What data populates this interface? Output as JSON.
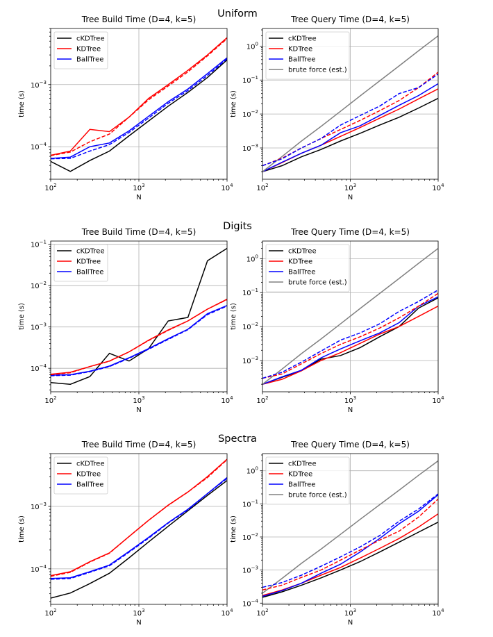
{
  "chart_data": [
    {
      "type": "line",
      "dataset": "Uniform",
      "title": "Tree Build Time (D=4, k=5)",
      "xlabel": "N",
      "ylabel": "time (s)",
      "xscale": "log",
      "yscale": "log",
      "xlim": [
        100,
        10000
      ],
      "ylim": [
        3e-05,
        0.008
      ],
      "grid": true,
      "legend_position": "upper-left",
      "x": [
        100,
        167,
        278,
        464,
        774,
        1292,
        2154,
        3594,
        5995,
        10000
      ],
      "series": [
        {
          "name": "cKDTree",
          "color": "#000000",
          "dashed": false,
          "values": [
            5.8e-05,
            4e-05,
            6e-05,
            8.5e-05,
            0.00015,
            0.00026,
            0.00045,
            0.00075,
            0.0013,
            0.0025
          ]
        },
        {
          "name": "KDTree",
          "color": "#ff0000",
          "dashed": false,
          "values": [
            7.3e-05,
            8.5e-05,
            0.00019,
            0.000175,
            0.0003,
            0.0006,
            0.001,
            0.0017,
            0.003,
            0.0057
          ]
        },
        {
          "name": "BallTree",
          "color": "#0000ff",
          "dashed": false,
          "values": [
            6.5e-05,
            6.8e-05,
            0.0001,
            0.000115,
            0.00018,
            0.00031,
            0.00053,
            0.00085,
            0.0015,
            0.0027
          ]
        },
        {
          "name": "",
          "color": "#ff0000",
          "dashed": true,
          "values": [
            7.2e-05,
            8.2e-05,
            0.00012,
            0.00016,
            0.0003,
            0.00057,
            0.00095,
            0.0016,
            0.0029,
            0.0055
          ]
        },
        {
          "name": "",
          "color": "#0000ff",
          "dashed": true,
          "values": [
            6.4e-05,
            6.5e-05,
            8.5e-05,
            0.000108,
            0.00017,
            0.00029,
            0.0005,
            0.0008,
            0.0014,
            0.0026
          ]
        }
      ]
    },
    {
      "type": "line",
      "dataset": "Uniform",
      "title": "Tree Query Time (D=4, k=5)",
      "xlabel": "N",
      "ylabel": "time (s)",
      "xscale": "log",
      "yscale": "log",
      "xlim": [
        100,
        10000
      ],
      "ylim": [
        0.00012,
        3.3
      ],
      "grid": true,
      "legend_position": "upper-left",
      "x": [
        100,
        167,
        278,
        464,
        774,
        1292,
        2154,
        3594,
        5995,
        10000
      ],
      "series": [
        {
          "name": "cKDTree",
          "color": "#000000",
          "dashed": false,
          "values": [
            0.0002,
            0.0003,
            0.00055,
            0.0009,
            0.0016,
            0.0027,
            0.0047,
            0.008,
            0.015,
            0.029
          ]
        },
        {
          "name": "KDTree",
          "color": "#ff0000",
          "dashed": false,
          "values": [
            0.0002,
            0.00037,
            0.0007,
            0.0012,
            0.0022,
            0.004,
            0.0075,
            0.014,
            0.028,
            0.055
          ]
        },
        {
          "name": "BallTree",
          "color": "#0000ff",
          "dashed": false,
          "values": [
            0.0002,
            0.00038,
            0.0007,
            0.0012,
            0.0028,
            0.0045,
            0.009,
            0.018,
            0.035,
            0.078
          ]
        },
        {
          "name": "brute force (est.)",
          "color": "#808080",
          "dashed": false,
          "values": [
            0.0002,
            0.00056,
            0.0016,
            0.0043,
            0.012,
            0.034,
            0.094,
            0.26,
            0.73,
            2.0
          ]
        },
        {
          "name": "",
          "color": "#ff0000",
          "dashed": true,
          "values": [
            0.0003,
            0.0005,
            0.001,
            0.0019,
            0.0035,
            0.0065,
            0.0125,
            0.025,
            0.06,
            0.17
          ]
        },
        {
          "name": "",
          "color": "#0000ff",
          "dashed": true,
          "values": [
            0.0003,
            0.00048,
            0.001,
            0.0019,
            0.0047,
            0.009,
            0.017,
            0.04,
            0.06,
            0.15
          ]
        }
      ]
    },
    {
      "type": "line",
      "dataset": "Digits",
      "title": "Tree Build Time (D=4, k=5)",
      "xlabel": "N",
      "ylabel": "time (s)",
      "xscale": "log",
      "yscale": "log",
      "xlim": [
        100,
        10000
      ],
      "ylim": [
        2.7e-05,
        0.12
      ],
      "grid": true,
      "legend_position": "upper-left",
      "x": [
        100,
        167,
        278,
        464,
        774,
        1292,
        2154,
        3594,
        5995,
        10000
      ],
      "series": [
        {
          "name": "cKDTree",
          "color": "#000000",
          "dashed": false,
          "values": [
            4.5e-05,
            4.1e-05,
            6.3e-05,
            0.00023,
            0.00015,
            0.0003,
            0.0014,
            0.0017,
            0.04,
            0.08
          ]
        },
        {
          "name": "KDTree",
          "color": "#ff0000",
          "dashed": false,
          "values": [
            7.2e-05,
            8e-05,
            0.00011,
            0.00015,
            0.00025,
            0.00048,
            0.00085,
            0.0014,
            0.0027,
            0.0047
          ]
        },
        {
          "name": "BallTree",
          "color": "#0000ff",
          "dashed": false,
          "values": [
            6.8e-05,
            7e-05,
            8.5e-05,
            0.000113,
            0.00018,
            0.0003,
            0.00052,
            0.00088,
            0.0021,
            0.0033
          ]
        },
        {
          "name": "",
          "color": "#ff0000",
          "dashed": true,
          "values": [
            7e-05,
            7.8e-05,
            0.00011,
            0.000148,
            0.00025,
            0.00047,
            0.00083,
            0.0014,
            0.0027,
            0.0046
          ]
        },
        {
          "name": "",
          "color": "#0000ff",
          "dashed": true,
          "values": [
            6.6e-05,
            6.8e-05,
            8.3e-05,
            0.00011,
            0.000175,
            0.00029,
            0.0005,
            0.00086,
            0.002,
            0.0032
          ]
        }
      ]
    },
    {
      "type": "line",
      "dataset": "Digits",
      "title": "Tree Query Time (D=4, k=5)",
      "xlabel": "N",
      "ylabel": "time (s)",
      "xscale": "log",
      "yscale": "log",
      "xlim": [
        100,
        10000
      ],
      "ylim": [
        0.00012,
        3.3
      ],
      "grid": true,
      "legend_position": "upper-left",
      "x": [
        100,
        167,
        278,
        464,
        774,
        1292,
        2154,
        3594,
        5995,
        10000
      ],
      "series": [
        {
          "name": "cKDTree",
          "color": "#000000",
          "dashed": false,
          "values": [
            0.0002,
            0.00032,
            0.0005,
            0.0011,
            0.0014,
            0.0024,
            0.005,
            0.01,
            0.035,
            0.07
          ]
        },
        {
          "name": "KDTree",
          "color": "#ff0000",
          "dashed": false,
          "values": [
            0.0002,
            0.00028,
            0.0005,
            0.001,
            0.0017,
            0.0032,
            0.006,
            0.01,
            0.02,
            0.04
          ]
        },
        {
          "name": "BallTree",
          "color": "#0000ff",
          "dashed": false,
          "values": [
            0.0002,
            0.00033,
            0.00052,
            0.0012,
            0.0022,
            0.0038,
            0.0065,
            0.013,
            0.04,
            0.075
          ]
        },
        {
          "name": "brute force (est.)",
          "color": "#808080",
          "dashed": false,
          "values": [
            0.0002,
            0.00056,
            0.0016,
            0.0043,
            0.012,
            0.034,
            0.094,
            0.26,
            0.73,
            2.0
          ]
        },
        {
          "name": "",
          "color": "#ff0000",
          "dashed": true,
          "values": [
            0.0003,
            0.0004,
            0.0008,
            0.0016,
            0.003,
            0.005,
            0.009,
            0.018,
            0.04,
            0.095
          ]
        },
        {
          "name": "",
          "color": "#0000ff",
          "dashed": true,
          "values": [
            0.0003,
            0.00045,
            0.0009,
            0.0019,
            0.004,
            0.0065,
            0.012,
            0.028,
            0.055,
            0.12
          ]
        }
      ]
    },
    {
      "type": "line",
      "dataset": "Spectra",
      "title": "Tree Build Time (D=4, k=5)",
      "xlabel": "N",
      "ylabel": "time (s)",
      "xscale": "log",
      "yscale": "log",
      "xlim": [
        100,
        10000
      ],
      "ylim": [
        2.7e-05,
        0.007
      ],
      "grid": true,
      "legend_position": "upper-left",
      "x": [
        100,
        167,
        278,
        464,
        774,
        1292,
        2154,
        3594,
        5995,
        10000
      ],
      "series": [
        {
          "name": "cKDTree",
          "color": "#000000",
          "dashed": false,
          "values": [
            3.4e-05,
            4.1e-05,
            5.8e-05,
            8.5e-05,
            0.00015,
            0.00027,
            0.00048,
            0.00085,
            0.0015,
            0.0026
          ]
        },
        {
          "name": "KDTree",
          "color": "#ff0000",
          "dashed": false,
          "values": [
            7.8e-05,
            9e-05,
            0.00013,
            0.00018,
            0.00033,
            0.0006,
            0.00105,
            0.0017,
            0.003,
            0.0057
          ]
        },
        {
          "name": "BallTree",
          "color": "#0000ff",
          "dashed": false,
          "values": [
            7e-05,
            7.2e-05,
            9e-05,
            0.000115,
            0.00019,
            0.00032,
            0.00055,
            0.0009,
            0.0016,
            0.0029
          ]
        },
        {
          "name": "",
          "color": "#ff0000",
          "dashed": true,
          "values": [
            7.6e-05,
            8.8e-05,
            0.000128,
            0.000178,
            0.00033,
            0.0006,
            0.00104,
            0.0017,
            0.0029,
            0.0056
          ]
        },
        {
          "name": "",
          "color": "#0000ff",
          "dashed": true,
          "values": [
            6.8e-05,
            7e-05,
            8.8e-05,
            0.000112,
            0.000185,
            0.00031,
            0.00054,
            0.00088,
            0.0016,
            0.0028
          ]
        }
      ]
    },
    {
      "type": "line",
      "dataset": "Spectra",
      "title": "Tree Query Time (D=4, k=5)",
      "xlabel": "N",
      "ylabel": "time (s)",
      "xscale": "log",
      "yscale": "log",
      "xlim": [
        100,
        10000
      ],
      "ylim": [
        9.2e-05,
        3.3
      ],
      "grid": true,
      "legend_position": "upper-left",
      "x": [
        100,
        167,
        278,
        464,
        774,
        1292,
        2154,
        3594,
        5995,
        10000
      ],
      "series": [
        {
          "name": "cKDTree",
          "color": "#000000",
          "dashed": false,
          "values": [
            0.00015,
            0.00022,
            0.00035,
            0.00058,
            0.001,
            0.0018,
            0.0035,
            0.007,
            0.014,
            0.028
          ]
        },
        {
          "name": "KDTree",
          "color": "#ff0000",
          "dashed": false,
          "values": [
            0.00017,
            0.00025,
            0.0004,
            0.0007,
            0.0012,
            0.0023,
            0.0045,
            0.009,
            0.02,
            0.05
          ]
        },
        {
          "name": "BallTree",
          "color": "#0000ff",
          "dashed": false,
          "values": [
            0.00016,
            0.00024,
            0.0004,
            0.0008,
            0.0015,
            0.0035,
            0.009,
            0.025,
            0.06,
            0.19
          ]
        },
        {
          "name": "brute force (est.)",
          "color": "#808080",
          "dashed": false,
          "values": [
            0.0002,
            0.00056,
            0.0016,
            0.0043,
            0.012,
            0.034,
            0.094,
            0.26,
            0.73,
            2.0
          ]
        },
        {
          "name": "",
          "color": "#ff0000",
          "dashed": true,
          "values": [
            0.00025,
            0.00035,
            0.0006,
            0.001,
            0.002,
            0.004,
            0.008,
            0.015,
            0.04,
            0.14
          ]
        },
        {
          "name": "",
          "color": "#0000ff",
          "dashed": true,
          "values": [
            0.0003,
            0.00042,
            0.0007,
            0.0013,
            0.0025,
            0.005,
            0.011,
            0.03,
            0.07,
            0.2
          ]
        }
      ]
    }
  ],
  "figure": {
    "suptitles": [
      "Uniform",
      "Digits",
      "Spectra"
    ]
  }
}
